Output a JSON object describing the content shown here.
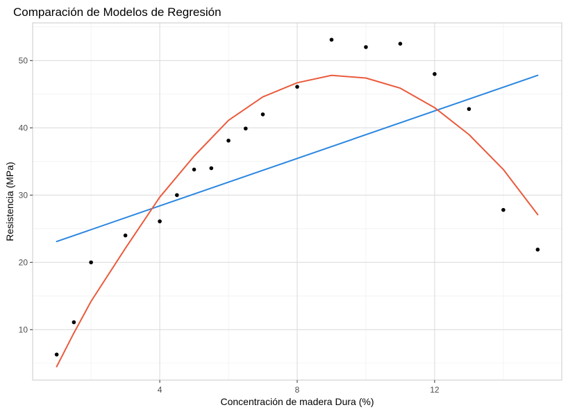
{
  "chart_data": {
    "type": "scatter",
    "title": "Comparación de Modelos de Regresión",
    "xlabel": "Concentración de madera Dura (%)",
    "ylabel": "Resistencia (MPa)",
    "xlim": [
      0.3,
      15.7
    ],
    "ylim": [
      2.5,
      55.6
    ],
    "x_ticks": [
      4,
      8,
      12
    ],
    "x_tick_labels": [
      "4",
      "8",
      "12"
    ],
    "y_ticks": [
      10,
      20,
      30,
      40,
      50
    ],
    "y_tick_labels": [
      "10",
      "20",
      "30",
      "40",
      "50"
    ],
    "grid": true,
    "legend": "none",
    "points": {
      "x": [
        1,
        1.5,
        2,
        3,
        4,
        4.5,
        5,
        5.5,
        6,
        6.5,
        7,
        8,
        9,
        10,
        11,
        12,
        13,
        14,
        15
      ],
      "y": [
        6.3,
        11.1,
        20.0,
        24.0,
        26.1,
        30.0,
        33.8,
        34.0,
        38.1,
        39.9,
        42.0,
        46.1,
        53.1,
        52.0,
        52.5,
        48.0,
        42.8,
        27.8,
        21.9
      ],
      "color": "#000000"
    },
    "series": [
      {
        "kind": "linear",
        "x": [
          1,
          15
        ],
        "y": [
          23.1,
          47.8
        ],
        "color": "#2a86e0"
      },
      {
        "kind": "quadratic",
        "x": [
          1,
          1.5,
          2,
          3,
          4,
          5,
          6,
          7,
          8,
          9,
          10,
          11,
          12,
          13,
          14,
          15
        ],
        "y": [
          4.5,
          9.5,
          14.2,
          22.1,
          29.7,
          35.8,
          41.1,
          44.6,
          46.7,
          47.8,
          47.4,
          45.9,
          43.0,
          39.0,
          33.8,
          27.1
        ],
        "color": "#ea5a3c"
      }
    ]
  }
}
